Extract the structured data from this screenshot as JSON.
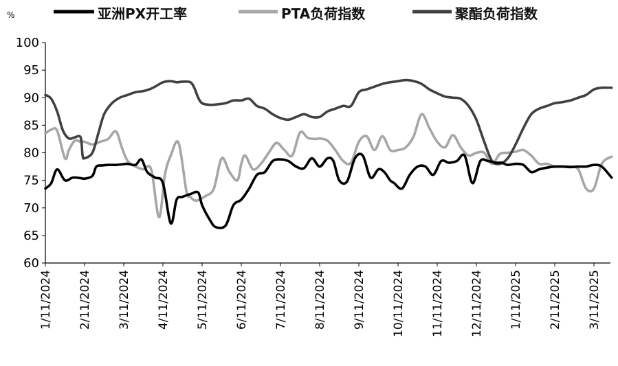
{
  "chart_data": {
    "type": "line",
    "unit_label": "%",
    "ylim": [
      60,
      100
    ],
    "y_ticks": [
      "60",
      "65",
      "70",
      "75",
      "80",
      "85",
      "90",
      "95",
      "100"
    ],
    "x_ticks": [
      "1/11/2024",
      "2/11/2024",
      "3/11/2024",
      "4/11/2024",
      "5/11/2024",
      "6/11/2024",
      "7/11/2024",
      "8/11/2024",
      "9/11/2024",
      "10/11/2024",
      "11/11/2024",
      "12/11/2024",
      "1/11/2025",
      "2/11/2025",
      "3/11/2025"
    ],
    "x_range": [
      0,
      14.45
    ],
    "grid": false,
    "legend_position": "top",
    "series": [
      {
        "name": "亚洲PX开工率",
        "color": "#000000",
        "x": [
          0,
          0.15,
          0.3,
          0.5,
          0.7,
          0.9,
          1.0,
          1.2,
          1.3,
          1.45,
          1.6,
          1.8,
          1.95,
          2.1,
          2.3,
          2.45,
          2.6,
          2.8,
          3.0,
          3.2,
          3.35,
          3.5,
          3.7,
          3.9,
          4.0,
          4.2,
          4.35,
          4.6,
          4.8,
          5.0,
          5.2,
          5.4,
          5.6,
          5.8,
          6.0,
          6.2,
          6.4,
          6.6,
          6.8,
          7.0,
          7.2,
          7.35,
          7.5,
          7.7,
          7.9,
          8.1,
          8.3,
          8.5,
          8.65,
          8.8,
          8.9,
          9.1,
          9.3,
          9.5,
          9.7,
          9.9,
          10.1,
          10.3,
          10.5,
          10.7,
          10.9,
          11.1,
          11.3,
          11.5,
          11.65,
          11.8,
          12.0,
          12.2,
          12.4,
          12.6,
          12.8,
          13.0,
          13.2,
          13.4,
          13.6,
          13.8,
          14.0,
          14.2,
          14.45
        ],
        "values": [
          73.5,
          74.5,
          77,
          75,
          75.5,
          75.4,
          75.3,
          75.8,
          77.5,
          77.7,
          77.8,
          77.8,
          77.9,
          78,
          77.8,
          78.8,
          76.5,
          75.5,
          74.5,
          67.2,
          71.5,
          72,
          72.5,
          72.8,
          70.5,
          67.8,
          66.5,
          66.8,
          70.5,
          71.5,
          73.5,
          76,
          76.5,
          78.5,
          78.8,
          78.5,
          77.5,
          77.2,
          79,
          77.5,
          79,
          78.5,
          75,
          74.8,
          79,
          79.5,
          75.5,
          77,
          76.5,
          75,
          74.5,
          73.5,
          76,
          77.5,
          77.5,
          76,
          78.5,
          78.2,
          78.5,
          79.5,
          74.5,
          78.5,
          78.5,
          78.2,
          78.2,
          77.8,
          78,
          77.8,
          76.5,
          77,
          77.3,
          77.5,
          77.5,
          77.4,
          77.5,
          77.5,
          77.8,
          77.5,
          75.5
        ]
      },
      {
        "name": "PTA负荷指数",
        "color": "#a6a6a6",
        "x": [
          0,
          0.15,
          0.3,
          0.5,
          0.6,
          0.75,
          0.9,
          1.0,
          1.2,
          1.4,
          1.6,
          1.8,
          1.95,
          2.1,
          2.3,
          2.5,
          2.7,
          2.9,
          3.05,
          3.2,
          3.4,
          3.6,
          3.7,
          3.8,
          3.9,
          4.1,
          4.3,
          4.5,
          4.7,
          4.9,
          5.0,
          5.1,
          5.3,
          5.5,
          5.7,
          5.9,
          6.1,
          6.3,
          6.5,
          6.7,
          6.9,
          7.0,
          7.2,
          7.4,
          7.6,
          7.8,
          8.0,
          8.2,
          8.4,
          8.6,
          8.8,
          9.0,
          9.2,
          9.4,
          9.6,
          9.8,
          10.0,
          10.2,
          10.4,
          10.6,
          10.8,
          11.0,
          11.2,
          11.4,
          11.6,
          11.8,
          12.0,
          12.2,
          12.4,
          12.6,
          12.8,
          13.0,
          13.2,
          13.4,
          13.6,
          13.8,
          14.0,
          14.2,
          14.45
        ],
        "values": [
          83.5,
          84.2,
          84,
          79,
          80.5,
          82.2,
          82,
          82,
          81.5,
          82,
          82.5,
          83.9,
          81,
          78.5,
          77.5,
          77,
          77,
          68.3,
          76,
          79.5,
          81.8,
          73,
          72,
          71.4,
          71.4,
          72.2,
          73.5,
          79,
          76.5,
          75,
          78,
          79.5,
          77,
          78,
          80,
          81.8,
          80.5,
          79.5,
          83.7,
          82.7,
          82.5,
          82.6,
          82.2,
          80.5,
          78.5,
          78.2,
          82,
          83,
          80.5,
          83,
          80.5,
          80.5,
          81,
          83,
          87,
          84.5,
          82,
          81,
          83.2,
          81,
          79.5,
          80,
          80,
          78,
          79.8,
          80,
          80.2,
          80.5,
          79.5,
          78,
          78,
          77.5,
          77.5,
          77.5,
          77,
          73.5,
          73.5,
          78,
          79.3
        ]
      },
      {
        "name": "聚酯负荷指数",
        "color": "#404040",
        "x": [
          0,
          0.15,
          0.3,
          0.45,
          0.6,
          0.75,
          0.9,
          0.95,
          1.0,
          1.2,
          1.35,
          1.5,
          1.7,
          1.9,
          2.1,
          2.3,
          2.5,
          2.65,
          2.8,
          3.0,
          3.2,
          3.35,
          3.5,
          3.7,
          3.8,
          3.9,
          4.0,
          4.2,
          4.4,
          4.6,
          4.8,
          5.0,
          5.2,
          5.4,
          5.6,
          5.8,
          6.0,
          6.2,
          6.4,
          6.6,
          6.8,
          7.0,
          7.2,
          7.4,
          7.6,
          7.8,
          8.0,
          8.2,
          8.4,
          8.6,
          8.8,
          9.0,
          9.2,
          9.4,
          9.6,
          9.8,
          10.0,
          10.2,
          10.4,
          10.6,
          10.8,
          11.0,
          11.2,
          11.4,
          11.6,
          11.8,
          12.0,
          12.2,
          12.4,
          12.6,
          12.8,
          13.0,
          13.2,
          13.4,
          13.6,
          13.8,
          14.0,
          14.2,
          14.45
        ],
        "values": [
          90.5,
          89.8,
          87.5,
          84,
          82.6,
          82.8,
          82.8,
          79.5,
          79,
          80,
          83.5,
          87,
          89,
          90,
          90.5,
          91,
          91.2,
          91.5,
          92,
          92.8,
          93,
          92.8,
          92.9,
          92.8,
          91.8,
          90,
          89,
          88.7,
          88.8,
          89,
          89.5,
          89.5,
          89.8,
          88.5,
          88,
          87,
          86.3,
          86,
          86.5,
          87,
          86.5,
          86.5,
          87.5,
          88,
          88.5,
          88.5,
          91,
          91.5,
          92,
          92.5,
          92.8,
          93,
          93.2,
          93,
          92.5,
          91.5,
          90.8,
          90.2,
          90,
          89.8,
          88.5,
          86,
          82,
          78.5,
          78,
          79,
          81.5,
          84.5,
          87,
          88,
          88.5,
          89,
          89.2,
          89.5,
          90,
          90.5,
          91.5,
          91.8,
          91.8
        ]
      }
    ]
  }
}
